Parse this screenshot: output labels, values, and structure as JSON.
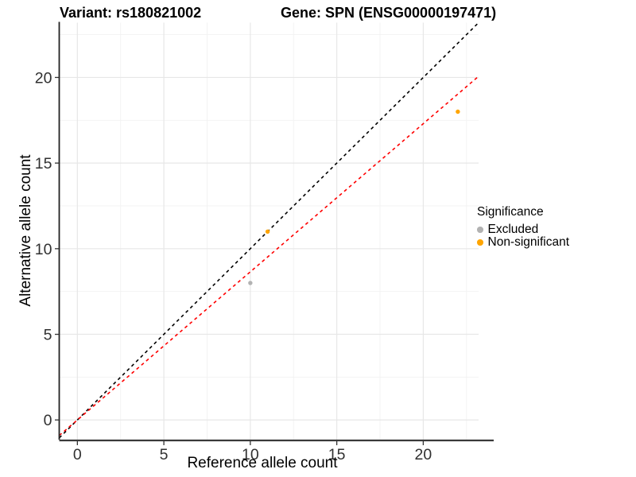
{
  "header": {
    "variant_title": "Variant: rs180821002",
    "gene_title": "Gene: SPN (ENSG00000197471)"
  },
  "chart_data": {
    "type": "scatter",
    "title": "Variant: rs180821002  |  Gene: SPN (ENSG00000197471)",
    "xlabel": "Reference allele count",
    "ylabel": "Alternative allele count",
    "xlim": [
      -1.05,
      23.2
    ],
    "ylim": [
      -1.15,
      23.2
    ],
    "x_ticks": [
      0,
      5,
      10,
      15,
      20
    ],
    "y_ticks": [
      0,
      5,
      10,
      15,
      20
    ],
    "x_minor_ticks": [
      2.5,
      7.5,
      12.5,
      17.5,
      22.5
    ],
    "y_minor_ticks": [
      2.5,
      7.5,
      12.5,
      17.5,
      22.5
    ],
    "grid": true,
    "legend_position": "right",
    "legend_title": "Significance",
    "series": [
      {
        "name": "Excluded",
        "color": "#b2b2b2",
        "points": [
          [
            10,
            8
          ]
        ]
      },
      {
        "name": "Non-significant",
        "color": "#ffa500",
        "points": [
          [
            11,
            11
          ],
          [
            22,
            18
          ]
        ]
      }
    ],
    "reference_lines": [
      {
        "name": "identity-line",
        "color": "#000000",
        "style": "dashed",
        "slope": 1,
        "intercept": 0
      },
      {
        "name": "allelic-ratio-line",
        "color": "#ff0000",
        "style": "dashed",
        "slope": 0.865,
        "intercept": 0
      }
    ],
    "colors": {
      "grid_major": "#e7e7e7",
      "grid_minor": "#f2f2f2",
      "axis_line": "#3a3a3a",
      "tick_text": "#303030"
    }
  }
}
